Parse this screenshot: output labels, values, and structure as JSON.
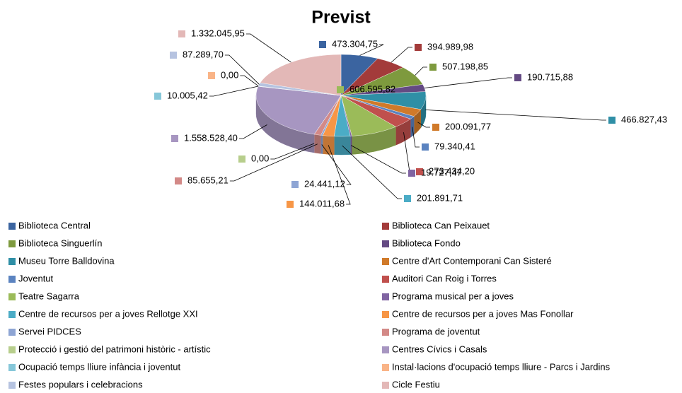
{
  "chart_data": {
    "type": "pie3d",
    "title": "Previst",
    "categories": [
      "Biblioteca Central",
      "Biblioteca Can Peixauet",
      "Biblioteca Singuerlín",
      "Biblioteca Fondo",
      "Museu Torre Balldovina",
      "Centre d'Art Contemporani Can Sisteré",
      "Joventut",
      "Auditori Can Roig i Torres",
      "Teatre Sagarra",
      "Programa musical per a joves",
      "Centre de recursos per a joves Rellotge XXI",
      "Centre de recursos per a joves Mas Fonollar",
      "Servei PIDCES",
      "Programa de joventut",
      "Protecció i gestió del patrimoni històric - artístic",
      "Centres Cívics i Casals",
      "Ocupació temps lliure infància i joventut",
      "Instal·lacions d'ocupació temps lliure - Parcs i Jardins",
      "Festes populars i celebracions",
      "Cicle Festiu"
    ],
    "values": [
      473304.75,
      394989.98,
      507198.85,
      190715.88,
      466827.43,
      200091.77,
      79340.41,
      273434.2,
      606595.82,
      19727.47,
      201891.71,
      144011.68,
      24441.12,
      85655.21,
      0,
      1558528.4,
      10005.42,
      0,
      87289.7,
      1332045.95
    ],
    "value_labels": [
      "473.304,75",
      "394.989,98",
      "507.198,85",
      "190.715,88",
      "466.827,43",
      "200.091,77",
      "79.340,41",
      "273.434,20",
      "606.595,82",
      "19.727,47",
      "201.891,71",
      "144.011,68",
      "24.441,12",
      "85.655,21",
      "0,00",
      "1.558.528,40",
      "10.005,42",
      "0,00",
      "87.289,70",
      "1.332.045,95"
    ],
    "colors": [
      "#3B64A0",
      "#A33B3A",
      "#7E9A3E",
      "#644A83",
      "#2F8FA6",
      "#D07A2A",
      "#5B83C0",
      "#C0504D",
      "#9BBB59",
      "#8064A2",
      "#4BACC6",
      "#F79646",
      "#8EA5D4",
      "#D38987",
      "#B7CE8C",
      "#A796C1",
      "#86C7D9",
      "#F9B487",
      "#B6C3E0",
      "#E3B8B7"
    ],
    "legend": "bottom"
  }
}
